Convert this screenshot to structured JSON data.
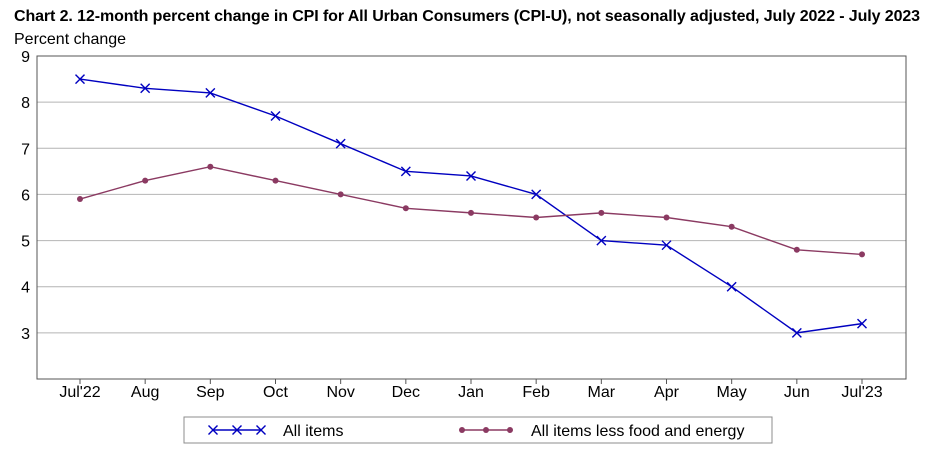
{
  "chart_data": {
    "type": "line",
    "title": "Chart 2. 12-month percent change in CPI for All Urban Consumers (CPI-U), not seasonally adjusted, July 2022 - July 2023",
    "ylabel": "Percent change",
    "xlabel": "",
    "categories": [
      "Jul'22",
      "Aug",
      "Sep",
      "Oct",
      "Nov",
      "Dec",
      "Jan",
      "Feb",
      "Mar",
      "Apr",
      "May",
      "Jun",
      "Jul'23"
    ],
    "ylim": [
      2,
      9
    ],
    "yticks": [
      3,
      4,
      5,
      6,
      7,
      8,
      9
    ],
    "grid": true,
    "legend_position": "bottom",
    "series": [
      {
        "name": "All items",
        "color": "#0000c0",
        "marker": "x",
        "values": [
          8.5,
          8.3,
          8.2,
          7.7,
          7.1,
          6.5,
          6.4,
          6.0,
          5.0,
          4.9,
          4.0,
          3.0,
          3.2
        ]
      },
      {
        "name": "All items less food and energy",
        "color": "#8b3a62",
        "marker": "circle",
        "values": [
          5.9,
          6.3,
          6.6,
          6.3,
          6.0,
          5.7,
          5.6,
          5.5,
          5.6,
          5.5,
          5.3,
          4.8,
          4.7
        ]
      }
    ]
  }
}
